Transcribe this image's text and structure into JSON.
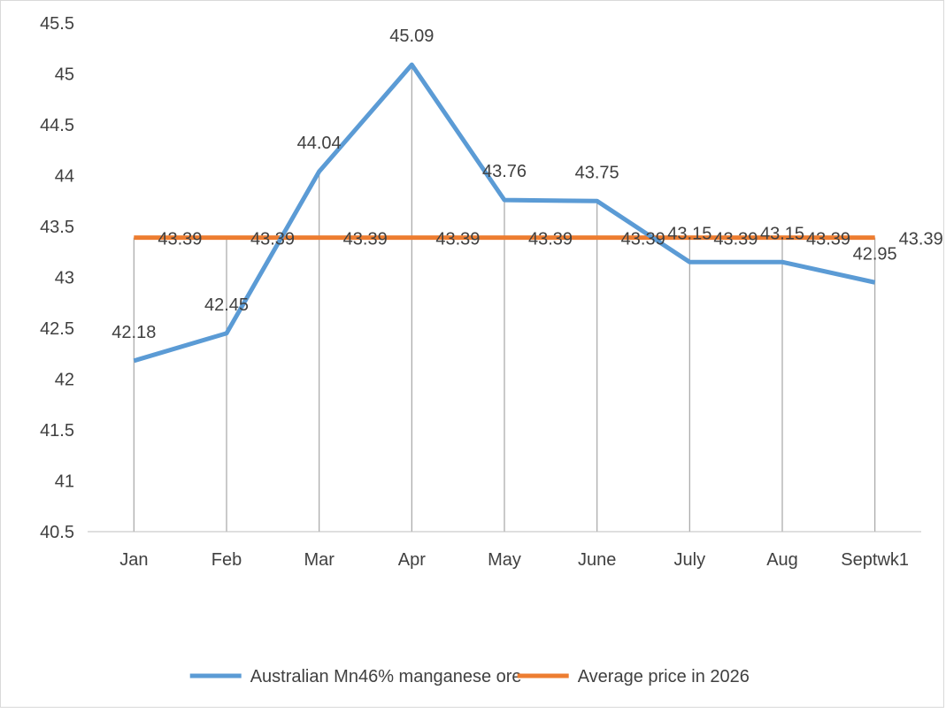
{
  "chart_data": {
    "type": "line",
    "categories": [
      "Jan",
      "Feb",
      "Mar",
      "Apr",
      "May",
      "June",
      "July",
      "Aug",
      "Septwk1"
    ],
    "series": [
      {
        "name": "Australian Mn46% manganese ore",
        "color": "#5b9bd5",
        "values": [
          42.18,
          42.45,
          44.04,
          45.09,
          43.76,
          43.75,
          43.15,
          43.15,
          42.95
        ]
      },
      {
        "name": "Average price in 2026",
        "color": "#ed7d31",
        "values": [
          43.39,
          43.39,
          43.39,
          43.39,
          43.39,
          43.39,
          43.39,
          43.39,
          43.39
        ]
      }
    ],
    "ylim": [
      40.5,
      45.5
    ],
    "yticks": [
      "40.5",
      "41",
      "41.5",
      "42",
      "42.5",
      "43",
      "43.5",
      "44",
      "44.5",
      "45",
      "45.5"
    ],
    "drop_lines": true,
    "data_labels": true,
    "legend_position": "bottom",
    "grid": false
  }
}
